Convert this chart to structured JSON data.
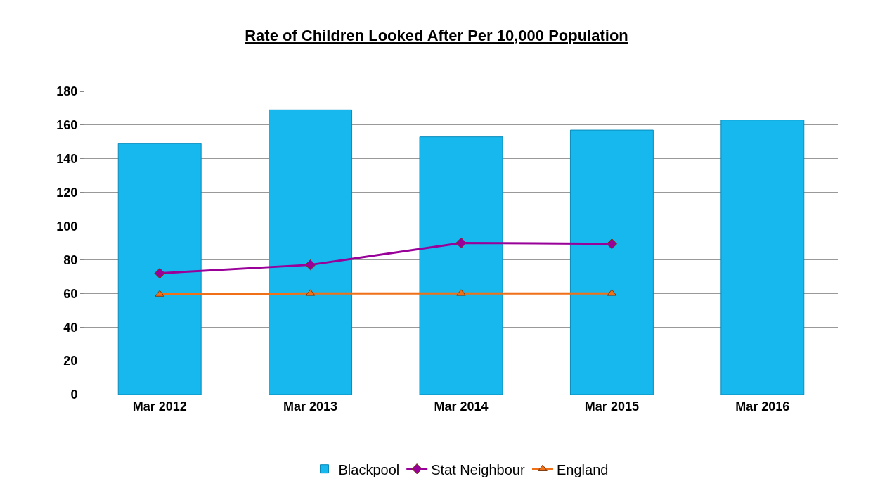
{
  "chart_data": {
    "type": "bar",
    "title": "Rate of Children Looked After Per 10,000 Population",
    "categories": [
      "Mar 2012",
      "Mar 2013",
      "Mar 2014",
      "Mar 2015",
      "Mar 2016"
    ],
    "series": [
      {
        "name": "Blackpool",
        "color": "#17b8ee",
        "values": [
          149,
          169,
          153,
          157,
          163
        ]
      },
      {
        "name": "Stat Neighbour",
        "type": "line",
        "color": "#990099",
        "marker": "diamond",
        "values": [
          72,
          77,
          90,
          89.5,
          null
        ]
      },
      {
        "name": "England",
        "type": "line",
        "color": "#f07018",
        "marker": "triangle",
        "values": [
          59.5,
          60,
          60,
          60,
          null
        ]
      }
    ],
    "ylim": [
      0,
      180
    ],
    "yticks": [
      0,
      20,
      40,
      60,
      80,
      100,
      120,
      140,
      160,
      180
    ],
    "grid": "y",
    "legend": "bottom"
  }
}
